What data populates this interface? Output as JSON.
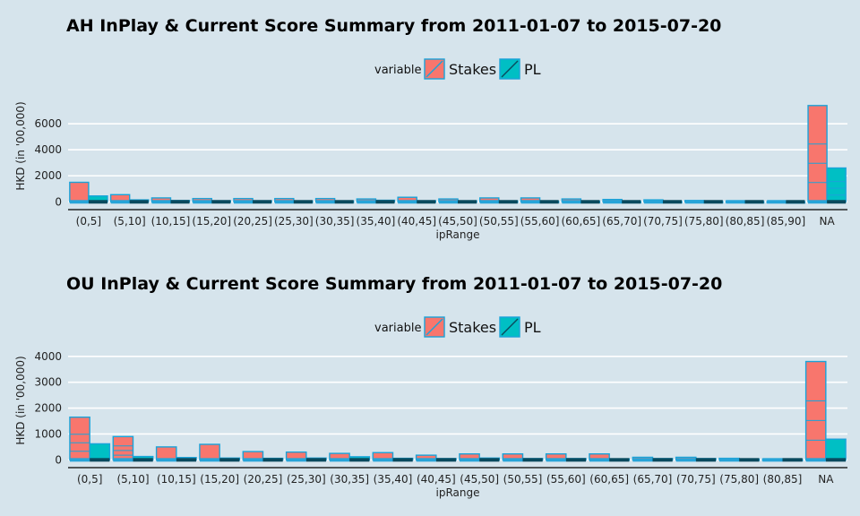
{
  "chart_data": [
    {
      "type": "bar",
      "title": "AH InPlay & Current Score Summary from 2011-01-07 to 2015-07-20",
      "xlabel": "ipRange",
      "ylabel": "HKD (in '00,000)",
      "legend": {
        "title": "variable",
        "placement": "top-center",
        "entries": [
          "Stakes",
          "PL"
        ]
      },
      "categories": [
        "(0,5]",
        "(5,10]",
        "(10,15]",
        "(15,20]",
        "(20,25]",
        "(25,30]",
        "(30,35]",
        "(35,40]",
        "(40,45]",
        "(45,50]",
        "(50,55]",
        "(55,60]",
        "(60,65]",
        "(65,70]",
        "(70,75]",
        "(75,80]",
        "(80,85]",
        "(85,90]",
        "NA"
      ],
      "yticks": [
        0,
        2000,
        4000,
        6000
      ],
      "ylim": [
        -600,
        7800
      ],
      "series": [
        {
          "name": "Stakes",
          "values": [
            1500,
            550,
            300,
            250,
            250,
            250,
            250,
            220,
            350,
            220,
            300,
            300,
            220,
            180,
            150,
            100,
            60,
            30,
            7400
          ]
        },
        {
          "name": "PL",
          "values": [
            450,
            150,
            100,
            80,
            80,
            60,
            60,
            120,
            80,
            70,
            60,
            40,
            40,
            30,
            30,
            30,
            20,
            10,
            2600
          ]
        }
      ],
      "grid": true
    },
    {
      "type": "bar",
      "title": "OU InPlay & Current Score Summary from 2011-01-07 to 2015-07-20",
      "xlabel": "ipRange",
      "ylabel": "HKD (in '00,000)",
      "legend": {
        "title": "variable",
        "placement": "top-center",
        "entries": [
          "Stakes",
          "PL"
        ]
      },
      "categories": [
        "(0,5]",
        "(5,10]",
        "(10,15]",
        "(15,20]",
        "(20,25]",
        "(25,30]",
        "(30,35]",
        "(35,40]",
        "(40,45]",
        "(45,50]",
        "(50,55]",
        "(55,60]",
        "(60,65]",
        "(65,70]",
        "(70,75]",
        "(75,80]",
        "(80,85]",
        "NA"
      ],
      "yticks": [
        0,
        1000,
        2000,
        3000,
        4000
      ],
      "ylim": [
        -300,
        4200
      ],
      "series": [
        {
          "name": "Stakes",
          "values": [
            1650,
            900,
            500,
            600,
            320,
            300,
            250,
            280,
            180,
            230,
            230,
            230,
            230,
            100,
            100,
            60,
            30,
            3800
          ]
        },
        {
          "name": "PL",
          "values": [
            620,
            130,
            90,
            70,
            60,
            70,
            120,
            60,
            50,
            70,
            50,
            50,
            40,
            50,
            50,
            30,
            20,
            800
          ]
        }
      ],
      "grid": true
    }
  ]
}
